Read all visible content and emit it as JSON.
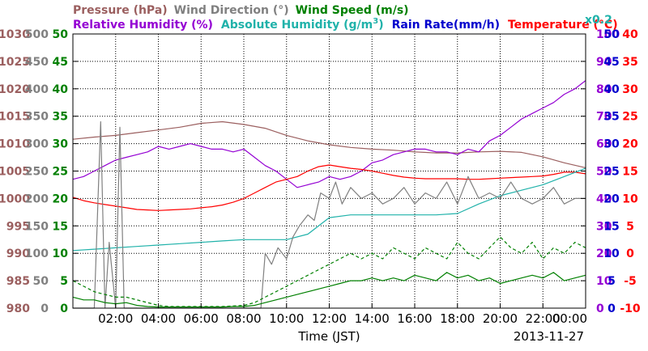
{
  "chart_data": {
    "type": "line",
    "x_axis": {
      "label": "Time (JST)",
      "date": "2013-11-27",
      "range_hours": [
        0,
        24
      ],
      "tick_hours": [
        2,
        4,
        6,
        8,
        10,
        12,
        14,
        16,
        18,
        20,
        22,
        24
      ],
      "tick_labels": [
        "02:00",
        "04:00",
        "06:00",
        "08:00",
        "10:00",
        "12:00",
        "14:00",
        "16:00",
        "18:00",
        "20:00",
        "22:00",
        "00:00"
      ]
    },
    "grid": true,
    "legend": {
      "row1": [
        {
          "key": "pressure",
          "text": "Pressure (hPa)",
          "color": "#9b5f5f"
        },
        {
          "key": "wind_dir",
          "text": "Wind Direction (°)",
          "color": "#808080"
        },
        {
          "key": "wind_speed",
          "text": "Wind Speed (m/s)",
          "color": "#008000"
        }
      ],
      "row2": [
        {
          "key": "rh",
          "text": "Relative Humidity (%)",
          "color": "#9400d3"
        },
        {
          "key": "ah",
          "text": "Absolute Humidity (g/m",
          "sup": "3",
          "close": ")",
          "color": "#20b2aa"
        },
        {
          "key": "rain",
          "text": "Rain Rate(mm/h)",
          "color": "#0000cd"
        },
        {
          "key": "temp",
          "text": "Temperature (°C)",
          "color": "#ff0000"
        },
        {
          "key": "ah_scale",
          "text": "x0.2",
          "color": "#20b2aa"
        }
      ]
    },
    "axes": {
      "pressure": {
        "range": [
          980,
          1030
        ],
        "ticks": [
          "980",
          "985",
          "990",
          "995",
          "1000",
          "1005",
          "1010",
          "1015",
          "1020",
          "1025",
          "1030"
        ],
        "color": "#9b5f5f"
      },
      "wind_dir": {
        "range": [
          0,
          500
        ],
        "ticks": [
          "0",
          "50",
          "100",
          "150",
          "200",
          "250",
          "300",
          "350",
          "400",
          "450",
          "500"
        ],
        "color": "#808080"
      },
      "wind_speed": {
        "range": [
          0,
          50
        ],
        "ticks": [
          "0",
          "5",
          "10",
          "15",
          "20",
          "25",
          "30",
          "35",
          "40",
          "45",
          "50"
        ],
        "color": "#008000"
      },
      "rh": {
        "range": [
          0,
          100
        ],
        "ticks": [
          "0",
          "10",
          "20",
          "30",
          "40",
          "50",
          "60",
          "70",
          "80",
          "90",
          "100"
        ],
        "color": "#9400d3"
      },
      "rain": {
        "range": [
          0,
          50
        ],
        "ticks": [
          "0",
          "5",
          "10",
          "15",
          "20",
          "25",
          "30",
          "35",
          "40",
          "45",
          "50"
        ],
        "color": "#0000cd"
      },
      "temp": {
        "range": [
          -10,
          40
        ],
        "ticks": [
          "-10",
          "-5",
          "0",
          "5",
          "10",
          "15",
          "20",
          "25",
          "30",
          "35",
          "40"
        ],
        "color": "#ff0000"
      }
    },
    "series": [
      {
        "key": "pressure",
        "axis": "pressure",
        "color": "#9b5f5f",
        "x": [
          0,
          1,
          2,
          3,
          4,
          5,
          6,
          7,
          8,
          9,
          10,
          11,
          12,
          13,
          14,
          15,
          16,
          17,
          18,
          19,
          20,
          21,
          22,
          23,
          24
        ],
        "y": [
          1010.8,
          1011.2,
          1011.5,
          1012.0,
          1012.5,
          1013.0,
          1013.7,
          1014.0,
          1013.5,
          1012.8,
          1011.5,
          1010.5,
          1009.8,
          1009.3,
          1009.0,
          1008.8,
          1008.5,
          1008.3,
          1008.3,
          1008.5,
          1008.6,
          1008.4,
          1007.6,
          1006.5,
          1005.6
        ]
      },
      {
        "key": "rh",
        "axis": "rh",
        "color": "#9400d3",
        "x": [
          0,
          0.5,
          1,
          1.5,
          2,
          2.5,
          3,
          3.5,
          4,
          4.5,
          5,
          5.5,
          6,
          6.5,
          7,
          7.5,
          8,
          8.5,
          9,
          9.5,
          10,
          10.5,
          11,
          11.5,
          12,
          12.5,
          13,
          13.5,
          14,
          14.5,
          15,
          15.5,
          16,
          16.5,
          17,
          17.5,
          18,
          18.5,
          19,
          19.5,
          20,
          20.5,
          21,
          21.5,
          22,
          22.5,
          23,
          23.5,
          24
        ],
        "y": [
          47,
          48,
          50,
          52,
          54,
          55,
          56,
          57,
          59,
          58,
          59,
          60,
          59,
          58,
          58,
          57,
          58,
          55,
          52,
          50,
          47,
          44,
          45,
          46,
          48,
          47,
          48,
          50,
          53,
          54,
          56,
          57,
          58,
          58,
          57,
          57,
          56,
          58,
          57,
          61,
          63,
          66,
          69,
          71,
          73,
          75,
          78,
          80,
          83
        ]
      },
      {
        "key": "temp",
        "axis": "temp",
        "color": "#ff0000",
        "x": [
          0,
          0.5,
          1,
          1.5,
          2,
          2.5,
          3,
          3.5,
          4,
          4.5,
          5,
          5.5,
          6,
          6.5,
          7,
          7.5,
          8,
          8.5,
          9,
          9.5,
          10,
          10.5,
          11,
          11.5,
          12,
          12.5,
          13,
          13.5,
          14,
          14.5,
          15,
          15.5,
          16,
          16.5,
          17,
          17.5,
          18,
          18.5,
          19,
          19.5,
          20,
          20.5,
          21,
          21.5,
          22,
          22.5,
          23,
          23.5,
          24
        ],
        "y": [
          10.2,
          9.6,
          9.2,
          8.9,
          8.6,
          8.3,
          8.0,
          7.9,
          7.8,
          7.9,
          8.0,
          8.1,
          8.3,
          8.5,
          8.8,
          9.3,
          10.0,
          11.0,
          12.0,
          13.0,
          13.5,
          14.0,
          15.0,
          15.8,
          16.1,
          15.8,
          15.5,
          15.3,
          15.0,
          14.6,
          14.2,
          13.9,
          13.7,
          13.6,
          13.6,
          13.6,
          13.6,
          13.5,
          13.5,
          13.6,
          13.7,
          13.8,
          13.9,
          14.0,
          14.1,
          14.4,
          14.8,
          14.8,
          14.5
        ]
      },
      {
        "key": "ah",
        "axis": "rh",
        "color": "#20b2aa",
        "x": [
          0,
          1,
          2,
          3,
          4,
          5,
          6,
          7,
          8,
          9,
          10,
          11,
          12,
          13,
          14,
          15,
          16,
          17,
          18,
          19,
          20,
          21,
          22,
          23,
          24
        ],
        "y": [
          21.0,
          21.5,
          22.0,
          22.5,
          23.0,
          23.5,
          24.0,
          24.5,
          25.0,
          25.0,
          25.0,
          27.0,
          33.0,
          34.0,
          34.0,
          34.0,
          34.0,
          34.0,
          34.5,
          38.0,
          41.0,
          43.0,
          45.0,
          48.0,
          51.0
        ]
      },
      {
        "key": "wind_dir",
        "axis": "wind_dir",
        "color": "#808080",
        "x": [
          0,
          0.5,
          1,
          1.3,
          1.5,
          1.7,
          2,
          2.2,
          2.4,
          2.6,
          3,
          4,
          5,
          6,
          7,
          8,
          8.8,
          9,
          9.3,
          9.6,
          10,
          10.3,
          10.6,
          11,
          11.3,
          11.6,
          12,
          12.3,
          12.6,
          13,
          13.5,
          14,
          14.5,
          15,
          15.5,
          16,
          16.5,
          17,
          17.5,
          18,
          18.5,
          19,
          19.5,
          20,
          20.5,
          21,
          21.5,
          22,
          22.5,
          23,
          23.5,
          24
        ],
        "y": [
          0,
          0,
          0,
          340,
          0,
          120,
          0,
          330,
          0,
          0,
          0,
          0,
          0,
          0,
          0,
          0,
          0,
          100,
          80,
          110,
          90,
          130,
          150,
          170,
          160,
          210,
          200,
          230,
          190,
          220,
          200,
          210,
          190,
          200,
          220,
          190,
          210,
          200,
          230,
          190,
          240,
          200,
          210,
          200,
          230,
          200,
          190,
          200,
          220,
          190,
          200,
          200
        ]
      },
      {
        "key": "wind_speed",
        "axis": "wind_speed",
        "color": "#008000",
        "x": [
          0,
          0.5,
          1,
          1.5,
          2,
          2.5,
          3,
          3.5,
          4,
          4.5,
          5,
          5.5,
          6,
          6.5,
          7,
          7.5,
          8,
          8.5,
          9,
          9.5,
          10,
          10.5,
          11,
          11.5,
          12,
          12.5,
          13,
          13.5,
          14,
          14.5,
          15,
          15.5,
          16,
          16.5,
          17,
          17.5,
          18,
          18.5,
          19,
          19.5,
          20,
          20.5,
          21,
          21.5,
          22,
          22.5,
          23,
          23.5,
          24
        ],
        "y": [
          2,
          1.5,
          1.5,
          1,
          0.8,
          1,
          0.5,
          0.3,
          0.2,
          0.2,
          0.2,
          0.2,
          0.2,
          0.2,
          0.2,
          0.3,
          0.3,
          0.5,
          1,
          1.5,
          2,
          2.5,
          3,
          3.5,
          4,
          4.5,
          5,
          5,
          5.5,
          5,
          5.5,
          5,
          6,
          5.5,
          5,
          6.5,
          5.5,
          6,
          5,
          5.5,
          4.5,
          5,
          5.5,
          6,
          5.5,
          6.5,
          5,
          5.5,
          6
        ]
      },
      {
        "key": "wind_gust",
        "axis": "wind_speed",
        "dashed": true,
        "color": "#008000",
        "x": [
          0,
          0.5,
          1,
          1.5,
          2,
          2.5,
          3,
          3.5,
          4,
          4.5,
          5,
          5.5,
          6,
          6.5,
          7,
          7.5,
          8,
          8.5,
          9,
          9.5,
          10,
          10.5,
          11,
          11.5,
          12,
          12.5,
          13,
          13.5,
          14,
          14.5,
          15,
          15.5,
          16,
          16.5,
          17,
          17.5,
          18,
          18.5,
          19,
          19.5,
          20,
          20.5,
          21,
          21.5,
          22,
          22.5,
          23,
          23.5,
          24
        ],
        "y": [
          5,
          4,
          3,
          2.5,
          2,
          2,
          1.5,
          1,
          0.5,
          0.3,
          0.3,
          0.3,
          0.3,
          0.3,
          0.3,
          0.4,
          0.5,
          1,
          2,
          3,
          4,
          5,
          6,
          7,
          8,
          9,
          10,
          9,
          10,
          9,
          11,
          10,
          9,
          11,
          10,
          9,
          12,
          10,
          9,
          11,
          13,
          11,
          10,
          12,
          9,
          11,
          10,
          12,
          11
        ]
      }
    ]
  }
}
